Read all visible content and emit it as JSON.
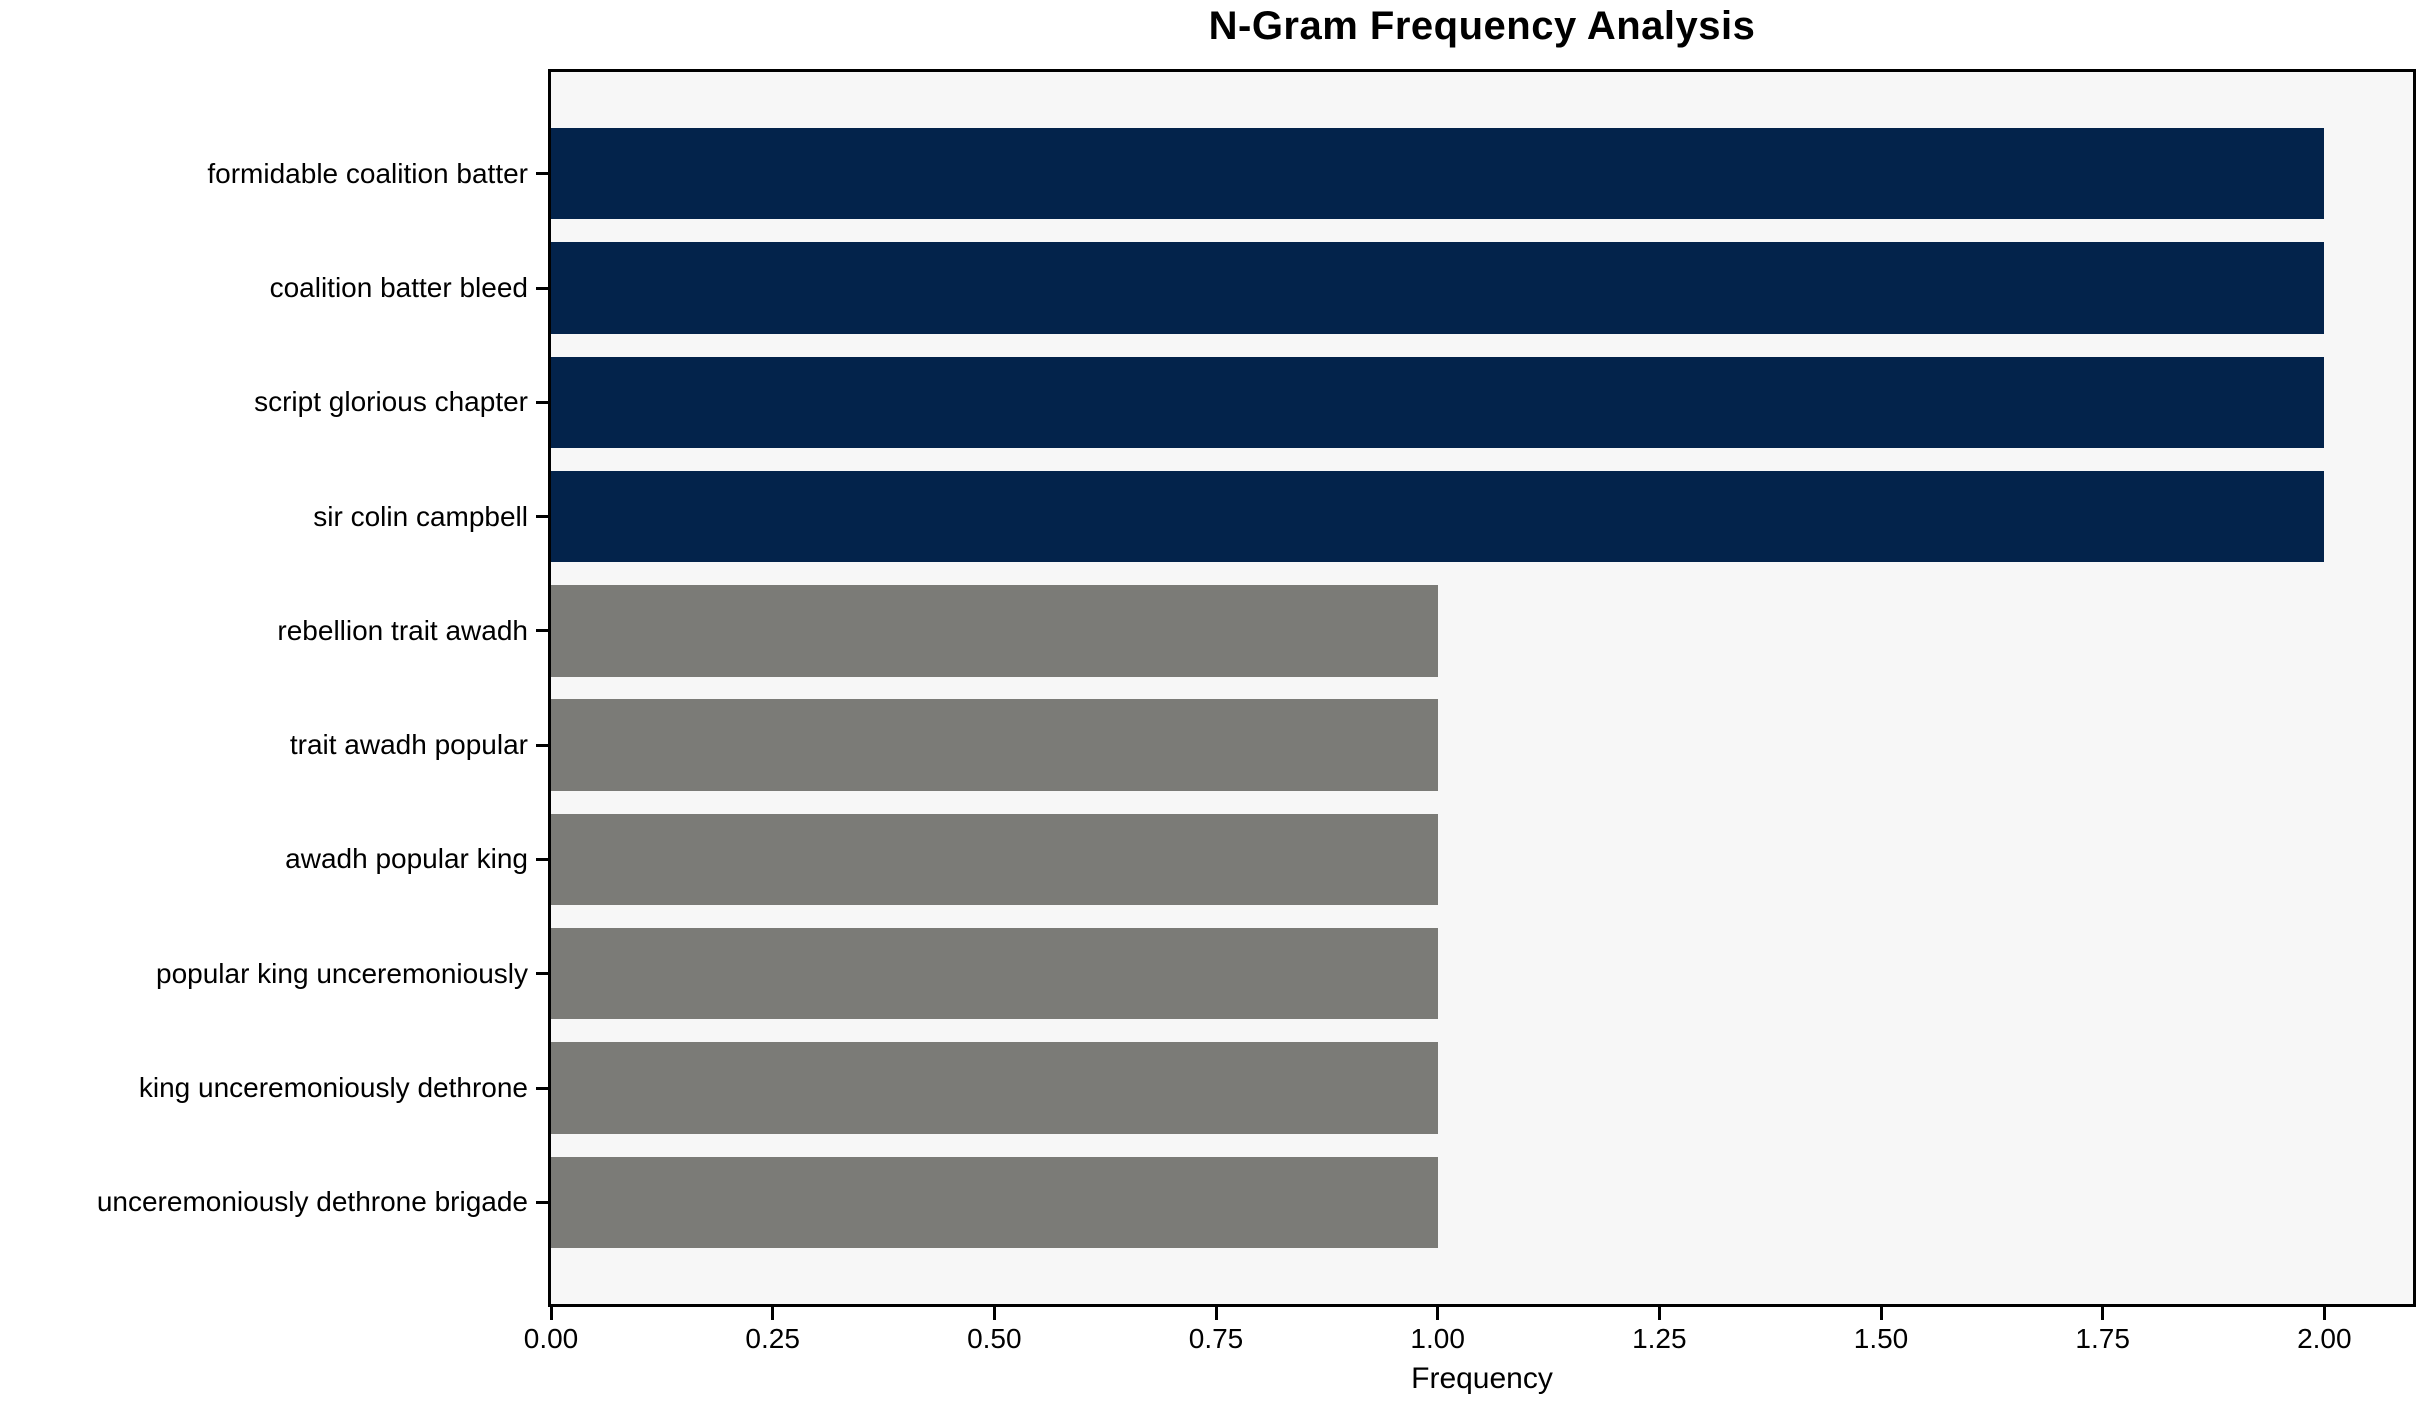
{
  "chart_data": {
    "type": "bar",
    "orientation": "horizontal",
    "title": "N-Gram Frequency Analysis",
    "xlabel": "Frequency",
    "ylabel": "",
    "categories": [
      "formidable coalition batter",
      "coalition batter bleed",
      "script glorious chapter",
      "sir colin campbell",
      "rebellion trait awadh",
      "trait awadh popular",
      "awadh popular king",
      "popular king unceremoniously",
      "king unceremoniously dethrone",
      "unceremoniously dethrone brigade"
    ],
    "values": [
      2,
      2,
      2,
      2,
      1,
      1,
      1,
      1,
      1,
      1
    ],
    "bar_colors": [
      "#03234B",
      "#03234B",
      "#03234B",
      "#03234B",
      "#7B7B77",
      "#7B7B77",
      "#7B7B77",
      "#7B7B77",
      "#7B7B77",
      "#7B7B77"
    ],
    "xticks": [
      "0.00",
      "0.25",
      "0.50",
      "0.75",
      "1.00",
      "1.25",
      "1.50",
      "1.75",
      "2.00"
    ],
    "xtick_values": [
      0,
      0.25,
      0.5,
      0.75,
      1.0,
      1.25,
      1.5,
      1.75,
      2.0
    ],
    "xlim": [
      0,
      2.1
    ],
    "grid": false,
    "legend": null,
    "plot_background": "#F7F7F7",
    "figure_background": "#FFFFFF",
    "spine_color": "#000000",
    "bar_height_fraction": 0.8
  }
}
